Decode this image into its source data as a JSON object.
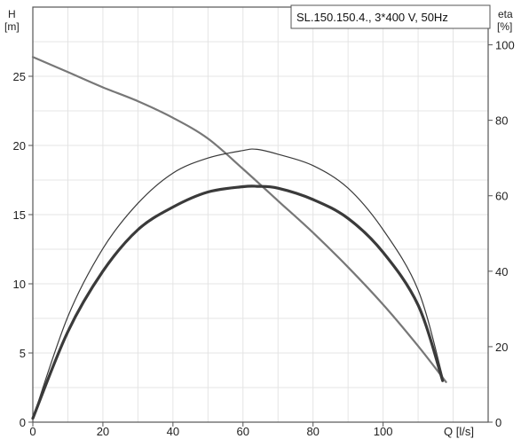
{
  "chart_data": {
    "type": "line",
    "title": "SL.150.150.4., 3*400 V, 50Hz",
    "xlabel": "Q [l/s]",
    "ylabel_left": [
      "H",
      "[m]"
    ],
    "ylabel_right": [
      "eta",
      "[%]"
    ],
    "xlim": [
      0,
      130
    ],
    "ylim_left": [
      0,
      30
    ],
    "ylim_right": [
      0,
      110
    ],
    "x_ticks": [
      0,
      20,
      40,
      60,
      80,
      100
    ],
    "y_ticks_left": [
      0,
      5,
      10,
      15,
      20,
      25
    ],
    "y_ticks_right": [
      0,
      20,
      40,
      60,
      80,
      100
    ],
    "grid": true,
    "colors": {
      "background": "#ffffff",
      "grid": "#e4e4e4",
      "frame": "#555555",
      "head_curve": "#777777",
      "efficiency_curves": "#3a3a3a"
    },
    "series": [
      {
        "axis": "left",
        "x": [
          0,
          10,
          20,
          30,
          40,
          50,
          60,
          70,
          80,
          90,
          100,
          110,
          118
        ],
        "values": [
          26.4,
          25.3,
          24.2,
          23.2,
          22.0,
          20.5,
          18.3,
          16.0,
          13.7,
          11.2,
          8.5,
          5.5,
          2.9
        ],
        "stroke_width": 2.2
      },
      {
        "axis": "right",
        "x": [
          0,
          10,
          20,
          30,
          40,
          50,
          60,
          64,
          70,
          80,
          90,
          100,
          110,
          117
        ],
        "values": [
          1,
          28,
          46,
          58,
          66,
          70,
          72,
          72.3,
          71,
          68,
          62,
          51,
          35,
          12
        ],
        "stroke_width": 1.2
      },
      {
        "axis": "right",
        "x": [
          0,
          10,
          20,
          30,
          40,
          50,
          60,
          64,
          70,
          80,
          90,
          100,
          110,
          117
        ],
        "values": [
          1,
          24,
          40,
          51,
          57,
          61,
          62.4,
          62.5,
          62,
          59,
          54,
          45,
          31,
          11
        ],
        "stroke_width": 3.2
      }
    ]
  }
}
